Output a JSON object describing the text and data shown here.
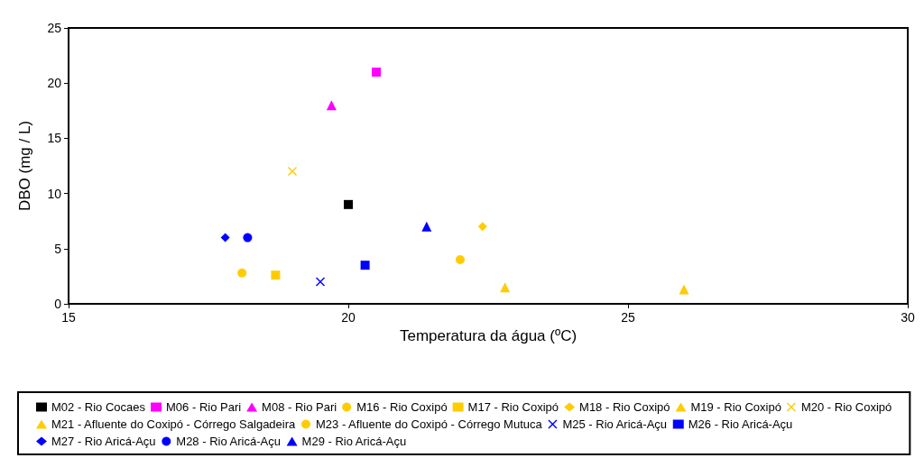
{
  "chart_data": {
    "type": "scatter",
    "xlabel": "Temperatura da água (ºC)",
    "ylabel": "DBO (mg / L)",
    "xlim": [
      15,
      30
    ],
    "xticks": [
      15,
      20,
      25,
      30
    ],
    "ylim": [
      0,
      25
    ],
    "yticks": [
      0,
      5,
      10,
      15,
      20,
      25
    ],
    "grid": false,
    "legend": "bottom",
    "series": [
      {
        "name": "M02 - Rio Cocaes",
        "color": "#000000",
        "marker": "square",
        "x": [
          20.0
        ],
        "values": [
          9
        ]
      },
      {
        "name": "M06 - Rio Pari",
        "color": "#ff00ff",
        "marker": "square",
        "x": [
          20.5
        ],
        "values": [
          21
        ]
      },
      {
        "name": "M08 - Rio Pari",
        "color": "#ff00ff",
        "marker": "triangle",
        "x": [
          19.7
        ],
        "values": [
          18
        ]
      },
      {
        "name": "M16 - Rio Coxipó",
        "color": "#ffcc00",
        "marker": "circle",
        "x": [
          18.1
        ],
        "values": [
          2.8
        ]
      },
      {
        "name": "M17 - Rio Coxipó",
        "color": "#ffcc00",
        "marker": "square",
        "x": [
          18.7
        ],
        "values": [
          2.6
        ]
      },
      {
        "name": "M18 - Rio Coxipó",
        "color": "#ffcc00",
        "marker": "diamond",
        "x": [
          22.4
        ],
        "values": [
          7
        ]
      },
      {
        "name": "M19 - Rio Coxipó",
        "color": "#ffcc00",
        "marker": "triangle",
        "x": [
          22.8
        ],
        "values": [
          1.5
        ]
      },
      {
        "name": "M20 - Rio Coxipó",
        "color": "#ffcc00",
        "marker": "cross",
        "x": [
          19.0
        ],
        "values": [
          12
        ]
      },
      {
        "name": "M21 - Afluente do Coxipó - Córrego Salgadeira",
        "color": "#ffcc00",
        "marker": "triangle",
        "x": [
          26.0
        ],
        "values": [
          1.3
        ]
      },
      {
        "name": "M23 - Afluente do Coxipó - Córrego Mutuca",
        "color": "#ffcc00",
        "marker": "circle",
        "x": [
          22.0
        ],
        "values": [
          4
        ]
      },
      {
        "name": "M25 - Rio Aricá-Açu",
        "color": "#0000ff",
        "marker": "cross",
        "x": [
          19.5
        ],
        "values": [
          2
        ]
      },
      {
        "name": "M26 - Rio Aricá-Açu",
        "color": "#0000ff",
        "marker": "square",
        "x": [
          20.3
        ],
        "values": [
          3.5
        ]
      },
      {
        "name": "M27 - Rio Aricá-Açu",
        "color": "#0000ff",
        "marker": "diamond",
        "x": [
          17.8
        ],
        "values": [
          6
        ]
      },
      {
        "name": "M28 - Rio Aricá-Açu",
        "color": "#0000ff",
        "marker": "circle",
        "x": [
          18.2
        ],
        "values": [
          6
        ]
      },
      {
        "name": "M29 - Rio Aricá-Açu",
        "color": "#0000ff",
        "marker": "triangle",
        "x": [
          21.4
        ],
        "values": [
          7
        ]
      }
    ]
  }
}
